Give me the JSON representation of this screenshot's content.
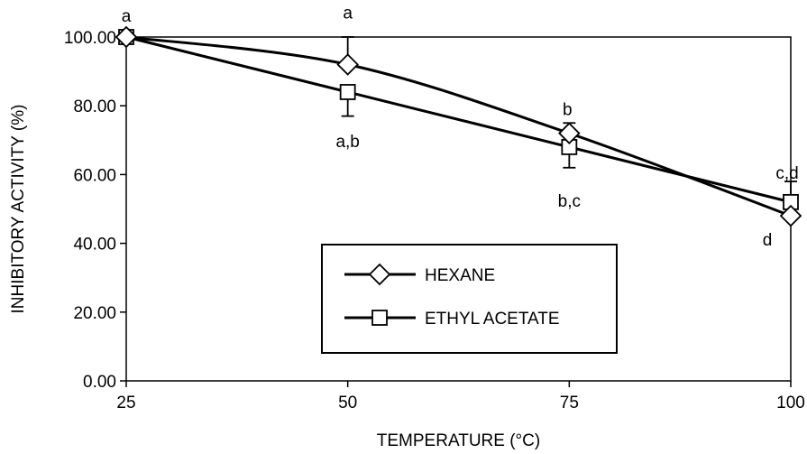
{
  "chart_data": {
    "type": "line",
    "title": "",
    "xlabel": "TEMPERATURE (°C)",
    "ylabel": "INHIBITORY ACTIVITY (%)",
    "xlim": [
      25,
      100
    ],
    "ylim": [
      0,
      100
    ],
    "x": [
      25,
      50,
      75,
      100
    ],
    "x_tick_labels": [
      "25",
      "50",
      "75",
      "100"
    ],
    "y_ticks": [
      0,
      20,
      40,
      60,
      80,
      100
    ],
    "y_tick_labels": [
      "0.00",
      "20.00",
      "40.00",
      "60.00",
      "80.00",
      "100.00"
    ],
    "grid": false,
    "legend_position": "center",
    "series": [
      {
        "name": "HEXANE",
        "marker": "diamond",
        "values": [
          100,
          92,
          72,
          48
        ],
        "error_low": [
          null,
          null,
          69,
          null
        ],
        "error_high": [
          null,
          100,
          75,
          null
        ],
        "labels": [
          "a",
          "a",
          "b",
          "d"
        ]
      },
      {
        "name": "ETHYL ACETATE",
        "marker": "square",
        "values": [
          100,
          84,
          68,
          52
        ],
        "error_low": [
          null,
          77,
          62,
          null
        ],
        "error_high": [
          null,
          null,
          null,
          58
        ],
        "labels": [
          "",
          "a,b",
          "b,c",
          "c,d"
        ]
      }
    ]
  }
}
